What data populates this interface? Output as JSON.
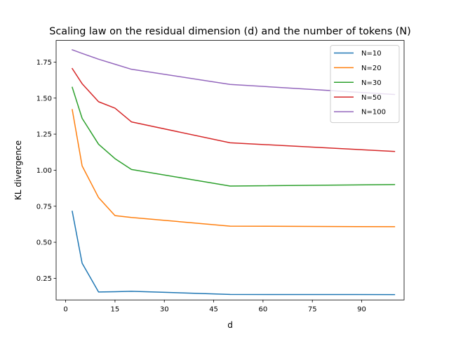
{
  "chart_data": {
    "type": "line",
    "title": "Scaling law on the residual dimension (d) and the number of tokens (N)",
    "xlabel": "d",
    "ylabel": "KL divergence",
    "xlim": [
      -2.9,
      102.9
    ],
    "ylim": [
      0.1,
      1.9
    ],
    "xticks": [
      0,
      15,
      30,
      45,
      60,
      75,
      90
    ],
    "yticks": [
      0.25,
      0.5,
      0.75,
      1.0,
      1.25,
      1.5,
      1.75
    ],
    "xtick_labels": [
      "0",
      "15",
      "30",
      "45",
      "60",
      "75",
      "90"
    ],
    "ytick_labels": [
      "0.25",
      "0.50",
      "0.75",
      "1.00",
      "1.25",
      "1.50",
      "1.75"
    ],
    "grid": false,
    "legend": "top-right",
    "x": [
      2,
      5,
      10,
      15,
      20,
      50,
      100
    ],
    "series": [
      {
        "name": "N=10",
        "color": "#1f77b4",
        "values": [
          0.715,
          0.355,
          0.155,
          0.157,
          0.16,
          0.138,
          0.137
        ]
      },
      {
        "name": "N=20",
        "color": "#ff7f0e",
        "values": [
          1.42,
          1.03,
          0.81,
          0.685,
          0.672,
          0.612,
          0.608
        ]
      },
      {
        "name": "N=30",
        "color": "#2ca02c",
        "values": [
          1.575,
          1.36,
          1.18,
          1.08,
          1.005,
          0.89,
          0.9
        ]
      },
      {
        "name": "N=50",
        "color": "#d62728",
        "values": [
          1.705,
          1.6,
          1.475,
          1.43,
          1.335,
          1.19,
          1.13
        ]
      },
      {
        "name": "N=100",
        "color": "#9467bd",
        "values": [
          1.835,
          1.81,
          1.77,
          1.735,
          1.7,
          1.595,
          1.525
        ]
      }
    ]
  }
}
